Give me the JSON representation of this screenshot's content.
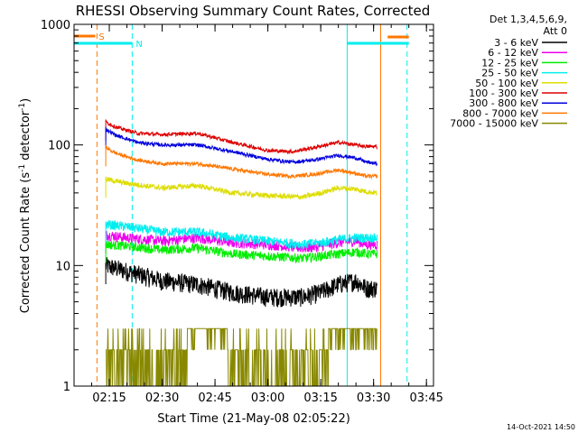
{
  "chart_data": {
    "type": "line",
    "title": "RHESSI Observing Summary Count Rates, Corrected",
    "xlabel": "Start Time (21-May-08 02:05:22)",
    "ylabel": "Corrected Count Rate (s",
    "ylabel_sup": "-1",
    "ylabel_mid": " detector",
    "ylabel_sup2": "-1",
    "ylabel_end": ")",
    "yscale": "log",
    "ylim": [
      1,
      1000
    ],
    "xlim_minutes": [
      0,
      102
    ],
    "x_ticks": [
      {
        "t": 10,
        "label": "02:15"
      },
      {
        "t": 25,
        "label": "02:30"
      },
      {
        "t": 40,
        "label": "02:45"
      },
      {
        "t": 55,
        "label": "03:00"
      },
      {
        "t": 70,
        "label": "03:15"
      },
      {
        "t": 85,
        "label": "03:30"
      },
      {
        "t": 100,
        "label": "03:45"
      }
    ],
    "y_ticks": [
      {
        "v": 1,
        "label": "1"
      },
      {
        "v": 10,
        "label": "10"
      },
      {
        "v": 100,
        "label": "100"
      },
      {
        "v": 1000,
        "label": "1000"
      }
    ],
    "legend_header": [
      "Det 1,3,4,5,6,9,",
      "Att 0"
    ],
    "legend_position": "right",
    "series": [
      {
        "name": "3 - 6 keV",
        "color": "#000000",
        "x": [
          9,
          15,
          25,
          35,
          45,
          55,
          65,
          70,
          75,
          80,
          83,
          86
        ],
        "y": [
          10,
          9,
          7.5,
          7,
          6,
          5.5,
          5.5,
          6,
          7,
          7.5,
          6.5,
          6.5
        ]
      },
      {
        "name": "6 - 12 keV",
        "color": "#ee00ee",
        "x": [
          9,
          15,
          25,
          35,
          45,
          55,
          65,
          70,
          75,
          80,
          83,
          86
        ],
        "y": [
          18,
          17,
          16,
          17,
          15.5,
          15,
          14,
          14.5,
          15.5,
          16,
          15,
          15
        ]
      },
      {
        "name": "12 - 25 keV",
        "color": "#00ee00",
        "x": [
          9,
          15,
          25,
          35,
          45,
          55,
          65,
          70,
          75,
          80,
          83,
          86
        ],
        "y": [
          15,
          14.5,
          13.5,
          14,
          12.5,
          12,
          11.5,
          12,
          12.5,
          13,
          12.5,
          12.5
        ]
      },
      {
        "name": "25 - 50 keV",
        "color": "#00eeee",
        "x": [
          9,
          15,
          25,
          35,
          45,
          55,
          65,
          70,
          75,
          80,
          83,
          86
        ],
        "y": [
          22,
          21,
          19,
          19,
          17,
          16,
          15,
          15.5,
          16.5,
          17,
          17,
          17
        ]
      },
      {
        "name": "50 - 100 keV",
        "color": "#dddd00",
        "x": [
          9,
          15,
          25,
          35,
          45,
          55,
          65,
          70,
          75,
          80,
          83,
          86
        ],
        "y": [
          52,
          48,
          44,
          46,
          40,
          38,
          37,
          40,
          44,
          43,
          41,
          40
        ]
      },
      {
        "name": "100 - 300 keV",
        "color": "#dd0000",
        "x": [
          9,
          12,
          18,
          25,
          35,
          45,
          55,
          62,
          68,
          75,
          80,
          83,
          86
        ],
        "y": [
          155,
          140,
          125,
          122,
          125,
          105,
          90,
          88,
          95,
          105,
          100,
          97,
          97
        ]
      },
      {
        "name": "300 - 800 keV",
        "color": "#0000dd",
        "x": [
          9,
          12,
          18,
          25,
          35,
          45,
          55,
          62,
          68,
          75,
          80,
          83,
          86
        ],
        "y": [
          135,
          120,
          105,
          100,
          100,
          88,
          76,
          72,
          75,
          82,
          78,
          72,
          70
        ]
      },
      {
        "name": "800 - 7000 keV",
        "color": "#ff7700",
        "x": [
          9,
          12,
          18,
          25,
          35,
          45,
          55,
          62,
          68,
          75,
          80,
          83,
          86
        ],
        "y": [
          95,
          85,
          75,
          70,
          70,
          63,
          57,
          55,
          57,
          62,
          58,
          55,
          55
        ]
      },
      {
        "name": "7000 - 15000 keV",
        "color": "#888800",
        "x": [
          9,
          30,
          35,
          50,
          60,
          70,
          75,
          86
        ],
        "y": [
          2,
          2,
          2.5,
          2,
          2,
          2,
          2.5,
          2.5
        ]
      }
    ],
    "flag_bars": [
      {
        "label": "S",
        "color": "#ff7700",
        "x_start": 0,
        "x_end": 6
      },
      {
        "label": "N",
        "color": "#00eeee",
        "x_start": 0,
        "x_end": 16.5
      },
      {
        "label": "",
        "color": "#00eeee",
        "x_start": 77.5,
        "x_end": 95
      },
      {
        "label": "",
        "color": "#ff7700",
        "x_start": 89,
        "x_end": 95
      }
    ],
    "vertical_markers": [
      {
        "x": 6.5,
        "color": "#ff7700",
        "dashed": true
      },
      {
        "x": 16.5,
        "color": "#00eeee",
        "dashed": true
      },
      {
        "x": 77.5,
        "color": "#00eeee",
        "dashed": false
      },
      {
        "x": 87,
        "color": "#ff7700",
        "dashed": false
      },
      {
        "x": 94.5,
        "color": "#00eeee",
        "dashed": true
      }
    ],
    "timestamp": "14-Oct-2021 14:50"
  }
}
